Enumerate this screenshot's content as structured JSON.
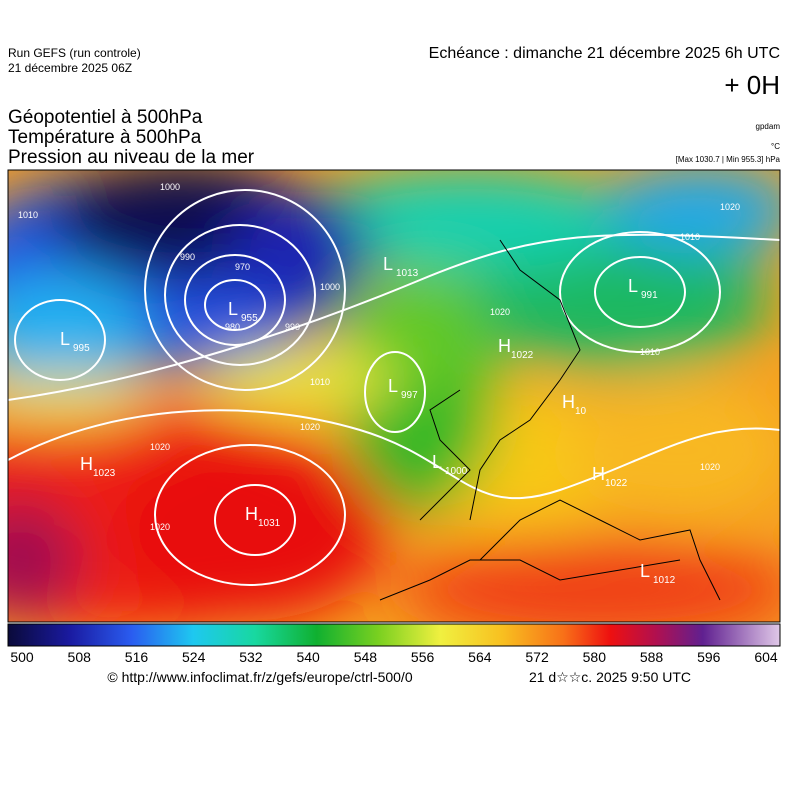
{
  "header": {
    "run": "Run GEFS (run controle)",
    "date": "21 décembre 2025 06Z",
    "echeance": "Echéance : dimanche 21 décembre 2025 6h UTC",
    "offset": "+ 0H"
  },
  "titles": [
    "Géopotentiel à 500hPa",
    "Température à 500hPa",
    "Pression au niveau de la mer"
  ],
  "units": {
    "geopotential": "gpdam",
    "temperature": "°C",
    "pressure": "[Max 1030.7 | Min 955.3] hPa"
  },
  "map": {
    "centers": [
      {
        "label": "L",
        "value": "995"
      },
      {
        "label": "L",
        "value": "955"
      },
      {
        "label": "L",
        "value": "1013"
      },
      {
        "label": "L",
        "value": "997"
      },
      {
        "label": "L",
        "value": "1000"
      },
      {
        "label": "L",
        "value": "991"
      },
      {
        "label": "H",
        "value": "1022"
      },
      {
        "label": "H",
        "value": "10"
      },
      {
        "label": "H",
        "value": "1022"
      },
      {
        "label": "H",
        "value": "1023"
      },
      {
        "label": "H",
        "value": "1031"
      },
      {
        "label": "L",
        "value": "1012"
      }
    ],
    "contour_labels": [
      "1010",
      "1000",
      "990",
      "980",
      "970",
      "1000",
      "990",
      "1010",
      "1020",
      "1020",
      "1020",
      "1010",
      "1020",
      "1010",
      "1020",
      "1020"
    ]
  },
  "colorbar": {
    "ticks": [
      500,
      508,
      516,
      524,
      532,
      540,
      548,
      556,
      564,
      572,
      580,
      588,
      596,
      604
    ]
  },
  "footer": {
    "source": "© http://www.infoclimat.fr/z/gefs/europe/ctrl-500/0",
    "stamp": "21 d☆☆c. 2025  9:50 UTC"
  }
}
